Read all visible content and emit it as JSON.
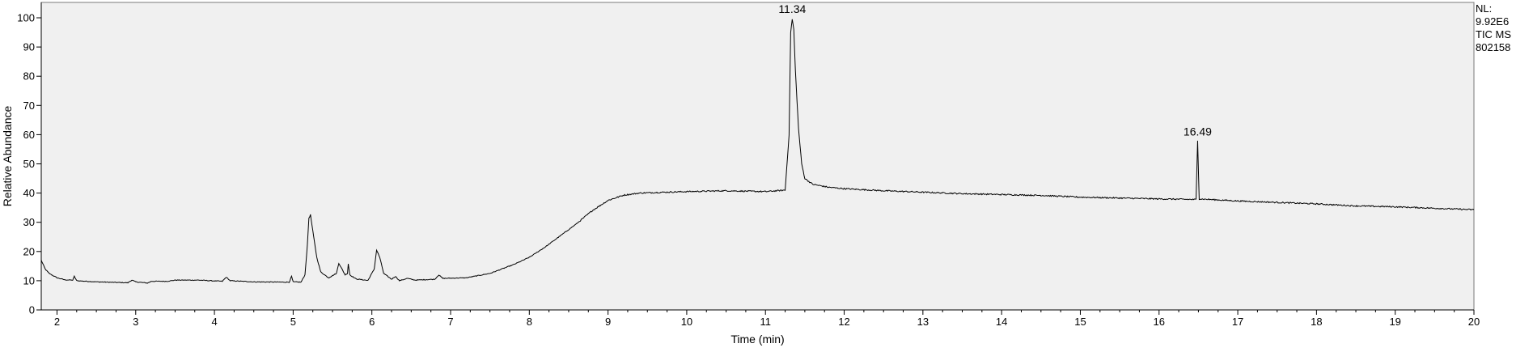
{
  "chart_data": {
    "type": "line",
    "xlabel": "Time (min)",
    "ylabel": "Relative Abundance",
    "xlim": [
      1.8,
      20.0
    ],
    "ylim": [
      0,
      100
    ],
    "x_ticks": [
      2,
      3,
      4,
      5,
      6,
      7,
      8,
      9,
      10,
      11,
      12,
      13,
      14,
      15,
      16,
      17,
      18,
      19,
      20
    ],
    "y_ticks": [
      0,
      10,
      20,
      30,
      40,
      50,
      60,
      70,
      80,
      90,
      100
    ],
    "grid": false,
    "colors": {
      "plot_background": "#f0f0f0",
      "trace": "#000000",
      "frame": "#7a7a7a"
    },
    "info_panel": [
      "NL:",
      "9.92E6",
      "TIC  MS",
      "802158"
    ],
    "peak_labels": [
      {
        "label": "11.34",
        "x": 11.34,
        "y": 100
      },
      {
        "label": "16.49",
        "x": 16.49,
        "y": 58
      }
    ],
    "series": [
      {
        "values_description": "TIC trace keypoints (time min, relative abundance %)",
        "points": [
          [
            1.8,
            17
          ],
          [
            1.85,
            14
          ],
          [
            1.9,
            12.5
          ],
          [
            2.0,
            11
          ],
          [
            2.1,
            10.3
          ],
          [
            2.2,
            10.2
          ],
          [
            2.22,
            11.5
          ],
          [
            2.25,
            10
          ],
          [
            2.5,
            9.6
          ],
          [
            2.9,
            9.3
          ],
          [
            2.95,
            10.2
          ],
          [
            3.0,
            9.6
          ],
          [
            3.15,
            9.2
          ],
          [
            3.2,
            9.8
          ],
          [
            3.4,
            9.8
          ],
          [
            3.5,
            10.2
          ],
          [
            3.8,
            10.2
          ],
          [
            4.1,
            9.8
          ],
          [
            4.15,
            11.2
          ],
          [
            4.2,
            10
          ],
          [
            4.5,
            9.6
          ],
          [
            4.95,
            9.5
          ],
          [
            4.98,
            11.5
          ],
          [
            5.0,
            9.6
          ],
          [
            5.1,
            9.5
          ],
          [
            5.15,
            12
          ],
          [
            5.18,
            22
          ],
          [
            5.2,
            31.5
          ],
          [
            5.22,
            32.5
          ],
          [
            5.25,
            27
          ],
          [
            5.3,
            18
          ],
          [
            5.35,
            13
          ],
          [
            5.45,
            11
          ],
          [
            5.55,
            12.5
          ],
          [
            5.58,
            16
          ],
          [
            5.62,
            14
          ],
          [
            5.66,
            12
          ],
          [
            5.69,
            12.5
          ],
          [
            5.7,
            15.8
          ],
          [
            5.72,
            12
          ],
          [
            5.8,
            10.6
          ],
          [
            5.95,
            10.1
          ],
          [
            6.03,
            14
          ],
          [
            6.06,
            20.5
          ],
          [
            6.1,
            18
          ],
          [
            6.15,
            12.5
          ],
          [
            6.25,
            10.5
          ],
          [
            6.3,
            11.5
          ],
          [
            6.35,
            10
          ],
          [
            6.45,
            10.8
          ],
          [
            6.55,
            10.2
          ],
          [
            6.8,
            10.5
          ],
          [
            6.85,
            12
          ],
          [
            6.9,
            10.8
          ],
          [
            7.2,
            11
          ],
          [
            7.5,
            12.5
          ],
          [
            7.8,
            15.5
          ],
          [
            8.0,
            18
          ],
          [
            8.2,
            21.5
          ],
          [
            8.4,
            25.5
          ],
          [
            8.6,
            29.5
          ],
          [
            8.8,
            34
          ],
          [
            9.0,
            37.5
          ],
          [
            9.2,
            39.3
          ],
          [
            9.4,
            40
          ],
          [
            9.6,
            40.2
          ],
          [
            10.0,
            40.5
          ],
          [
            10.5,
            40.8
          ],
          [
            11.0,
            40.5
          ],
          [
            11.25,
            41
          ],
          [
            11.3,
            60
          ],
          [
            11.32,
            95
          ],
          [
            11.34,
            99.5
          ],
          [
            11.36,
            96
          ],
          [
            11.38,
            82
          ],
          [
            11.42,
            62
          ],
          [
            11.46,
            50
          ],
          [
            11.5,
            45
          ],
          [
            11.6,
            43
          ],
          [
            11.8,
            42
          ],
          [
            12.0,
            41.5
          ],
          [
            12.5,
            40.8
          ],
          [
            13.0,
            40.3
          ],
          [
            13.5,
            39.8
          ],
          [
            14.0,
            39.5
          ],
          [
            14.5,
            39.2
          ],
          [
            15.0,
            38.6
          ],
          [
            15.5,
            38.3
          ],
          [
            16.0,
            38
          ],
          [
            16.47,
            37.8
          ],
          [
            16.49,
            58
          ],
          [
            16.51,
            38
          ],
          [
            17.0,
            37.3
          ],
          [
            17.5,
            36.8
          ],
          [
            18.0,
            36.3
          ],
          [
            18.5,
            35.6
          ],
          [
            19.0,
            35.3
          ],
          [
            19.5,
            34.8
          ],
          [
            20.0,
            34.3
          ]
        ]
      }
    ]
  }
}
